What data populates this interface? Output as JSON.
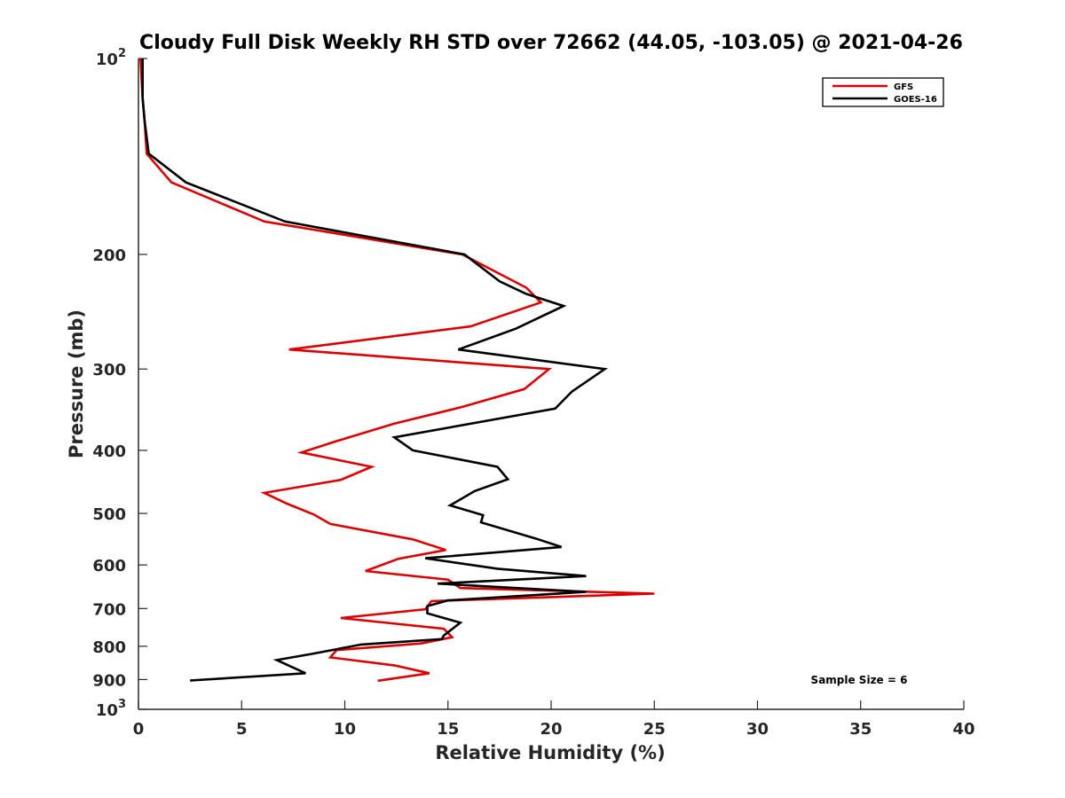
{
  "chart_data": {
    "type": "line",
    "title": "Cloudy Full Disk Weekly RH STD over 72662 (44.05, -103.05) @ 2021-04-26",
    "xlabel": "Relative Humidity (%)",
    "ylabel": "Pressure (mb)",
    "xlim": [
      0,
      40
    ],
    "ylim": [
      100,
      1000
    ],
    "yscale": "log",
    "y_reversed": true,
    "x_ticks": [
      0,
      5,
      10,
      15,
      20,
      25,
      30,
      35,
      40
    ],
    "x_tick_labels": [
      "0",
      "5",
      "10",
      "15",
      "20",
      "25",
      "30",
      "35",
      "40"
    ],
    "y_ticks": [
      100,
      200,
      300,
      400,
      500,
      600,
      700,
      800,
      900,
      1000
    ],
    "y_tick_labels": [
      {
        "base": "10",
        "exp": "2"
      },
      {
        "base": "200",
        "exp": ""
      },
      {
        "base": "300",
        "exp": ""
      },
      {
        "base": "400",
        "exp": ""
      },
      {
        "base": "500",
        "exp": ""
      },
      {
        "base": "600",
        "exp": ""
      },
      {
        "base": "700",
        "exp": ""
      },
      {
        "base": "800",
        "exp": ""
      },
      {
        "base": "900",
        "exp": ""
      },
      {
        "base": "10",
        "exp": "3"
      }
    ],
    "grid": false,
    "legend": "top-right",
    "annotation": "Sample Size = 6",
    "series": [
      {
        "name": "GFS",
        "color": "#dd0000",
        "points": [
          [
            0.1,
            100
          ],
          [
            0.2,
            115
          ],
          [
            0.3,
            125
          ],
          [
            0.4,
            140
          ],
          [
            1.6,
            155
          ],
          [
            6.1,
            178
          ],
          [
            15.7,
            200
          ],
          [
            18.8,
            225
          ],
          [
            19.5,
            237
          ],
          [
            16.1,
            258
          ],
          [
            7.3,
            280
          ],
          [
            19.9,
            300
          ],
          [
            18.7,
            322
          ],
          [
            15.7,
            343
          ],
          [
            12.4,
            364
          ],
          [
            9.5,
            388
          ],
          [
            7.9,
            403
          ],
          [
            11.3,
            424
          ],
          [
            9.8,
            444
          ],
          [
            6.1,
            465
          ],
          [
            7.2,
            483
          ],
          [
            8.5,
            502
          ],
          [
            9.3,
            519
          ],
          [
            13.3,
            548
          ],
          [
            14.9,
            569
          ],
          [
            12.6,
            587
          ],
          [
            11.0,
            613
          ],
          [
            15.0,
            632
          ],
          [
            15.6,
            651
          ],
          [
            25.0,
            664
          ],
          [
            14.2,
            682
          ],
          [
            13.9,
            702
          ],
          [
            9.8,
            724
          ],
          [
            14.8,
            752
          ],
          [
            15.2,
            775
          ],
          [
            13.7,
            792
          ],
          [
            9.6,
            811
          ],
          [
            9.3,
            832
          ],
          [
            12.4,
            856
          ],
          [
            14.1,
            880
          ],
          [
            11.6,
            904
          ]
        ]
      },
      {
        "name": "GOES-16",
        "color": "#000000",
        "points": [
          [
            0.2,
            100
          ],
          [
            0.2,
            115
          ],
          [
            0.3,
            125
          ],
          [
            0.5,
            140
          ],
          [
            2.3,
            155
          ],
          [
            7.1,
            178
          ],
          [
            15.8,
            200
          ],
          [
            17.5,
            220
          ],
          [
            18.8,
            230
          ],
          [
            20.6,
            240
          ],
          [
            18.3,
            260
          ],
          [
            15.5,
            280
          ],
          [
            22.6,
            300
          ],
          [
            21.0,
            325
          ],
          [
            20.2,
            345
          ],
          [
            12.4,
            382
          ],
          [
            13.3,
            400
          ],
          [
            17.4,
            424
          ],
          [
            17.9,
            443
          ],
          [
            16.3,
            462
          ],
          [
            15.1,
            486
          ],
          [
            16.7,
            503
          ],
          [
            16.6,
            516
          ],
          [
            19.3,
            547
          ],
          [
            20.5,
            563
          ],
          [
            13.9,
            586
          ],
          [
            17.4,
            608
          ],
          [
            21.7,
            624
          ],
          [
            14.5,
            641
          ],
          [
            21.7,
            660
          ],
          [
            15.0,
            680
          ],
          [
            14.0,
            694
          ],
          [
            14.0,
            712
          ],
          [
            15.6,
            736
          ],
          [
            14.8,
            770
          ],
          [
            14.7,
            780
          ],
          [
            10.8,
            795
          ],
          [
            8.4,
            822
          ],
          [
            6.7,
            840
          ],
          [
            8.1,
            880
          ],
          [
            2.5,
            903
          ]
        ]
      }
    ]
  }
}
